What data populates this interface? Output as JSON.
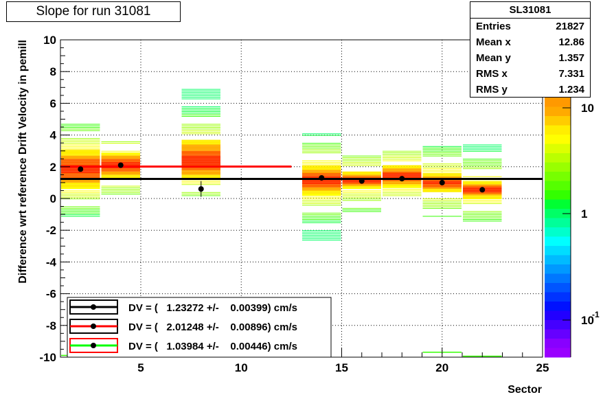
{
  "chart_data": {
    "type": "heatmap",
    "title": "Slope for run 31081",
    "xlabel": "Sector",
    "ylabel": "Difference wrt reference Drift Velocity in pemill",
    "xlim": [
      1,
      25
    ],
    "ylim": [
      -10,
      10
    ],
    "x_ticks": [
      5,
      10,
      15,
      20,
      25
    ],
    "y_ticks": [
      -10,
      -8,
      -6,
      -4,
      -2,
      0,
      2,
      4,
      6,
      8,
      10
    ],
    "grid": true,
    "color_scale": {
      "scale": "log",
      "labels": [
        "10",
        "1",
        "10"
      ],
      "exponent_label": "-1"
    },
    "columns": [
      {
        "x0": 1,
        "x1": 3,
        "lo": -1.5,
        "hi": 4.7,
        "core_lo": 0.6,
        "core_hi": 3.0
      },
      {
        "x0": 3,
        "x1": 5,
        "lo": 0.2,
        "hi": 3.6,
        "core_lo": 1.3,
        "core_hi": 2.8
      },
      {
        "x0": 7,
        "x1": 9,
        "lo": 0.1,
        "hi": 6.8,
        "core_lo": 1.2,
        "core_hi": 3.6
      },
      {
        "x0": 13,
        "x1": 15,
        "lo": -3.0,
        "hi": 4.1,
        "core_lo": 0.2,
        "core_hi": 2.0
      },
      {
        "x0": 15,
        "x1": 17,
        "lo": -0.9,
        "hi": 2.7,
        "core_lo": 0.6,
        "core_hi": 1.6
      },
      {
        "x0": 17,
        "x1": 19,
        "lo": -0.2,
        "hi": 3.3,
        "core_lo": 0.7,
        "core_hi": 2.0
      },
      {
        "x0": 19,
        "x1": 21,
        "lo": -1.2,
        "hi": 3.5,
        "core_lo": 0.4,
        "core_hi": 1.5
      },
      {
        "x0": 21,
        "x1": 23,
        "lo": -1.9,
        "hi": 3.4,
        "core_lo": 0.0,
        "core_hi": 1.0
      }
    ],
    "stray_bins": [
      {
        "x0": 1,
        "x1": 3,
        "y": -9.9
      },
      {
        "x0": 7,
        "x1": 9,
        "y": -9.9
      },
      {
        "x0": 19,
        "x1": 21,
        "y": -9.7
      },
      {
        "x0": 21,
        "x1": 23,
        "y": -9.95
      }
    ],
    "profile_points": [
      {
        "x": 2,
        "y": 1.85,
        "err": 0.15
      },
      {
        "x": 4,
        "y": 2.1,
        "err": 0.12
      },
      {
        "x": 8,
        "y": 0.6,
        "err": 0.5
      },
      {
        "x": 14,
        "y": 1.3,
        "err": 0.12
      },
      {
        "x": 16,
        "y": 1.1,
        "err": 0.1
      },
      {
        "x": 18,
        "y": 1.25,
        "err": 0.1
      },
      {
        "x": 20,
        "y": 1.0,
        "err": 0.12
      },
      {
        "x": 22,
        "y": 0.55,
        "err": 0.12
      }
    ],
    "fit_lines": [
      {
        "color": "#000000",
        "x0": 1,
        "x1": 25,
        "y": 1.23272
      },
      {
        "color": "#ff0000",
        "x0": 1,
        "x1": 12.5,
        "y": 2.01248
      }
    ]
  },
  "stats": {
    "title": "SL31081",
    "rows": [
      {
        "label": "Entries",
        "value": "21827"
      },
      {
        "label": "Mean x",
        "value": "12.86"
      },
      {
        "label": "Mean y",
        "value": "1.357"
      },
      {
        "label": "RMS x",
        "value": "7.331"
      },
      {
        "label": "RMS y",
        "value": "1.234"
      }
    ]
  },
  "legend": [
    {
      "text": "DV = (   1.23272 +/-    0.00399) cm/s",
      "line_color": "#000000",
      "box_color": "#000000"
    },
    {
      "text": "DV = (   2.01248 +/-    0.00896) cm/s",
      "line_color": "#ff0000",
      "box_color": "#000000"
    },
    {
      "text": "DV = (   1.03984 +/-    0.00446) cm/s",
      "line_color": "#00ff00",
      "box_color": "#ff0000"
    }
  ]
}
